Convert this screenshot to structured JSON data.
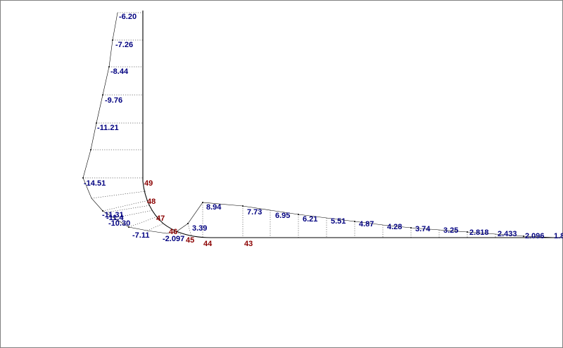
{
  "colors": {
    "value_text": "#000080",
    "node_text": "#8b0000",
    "lines": "#000000",
    "frame": "#808080"
  },
  "diagram": {
    "vertical_leg_values": [
      "-6.20",
      "-7.26",
      "-8.44",
      "-9.76",
      "-11.21",
      "-14.51"
    ],
    "corner_values": [
      "-11.31",
      "-11.4",
      "-10.30",
      "-7.11",
      "-2.097"
    ],
    "horizontal_leg_values": [
      "3.39",
      "8.94",
      "7.73",
      "6.95",
      "6.21",
      "5.51",
      "4.87",
      "4.28",
      "3.74",
      "3.25",
      "2.818",
      "2.433",
      "2.096",
      "1.8"
    ],
    "node_numbers": [
      "49",
      "48",
      "47",
      "46",
      "45",
      "44",
      "43"
    ]
  }
}
